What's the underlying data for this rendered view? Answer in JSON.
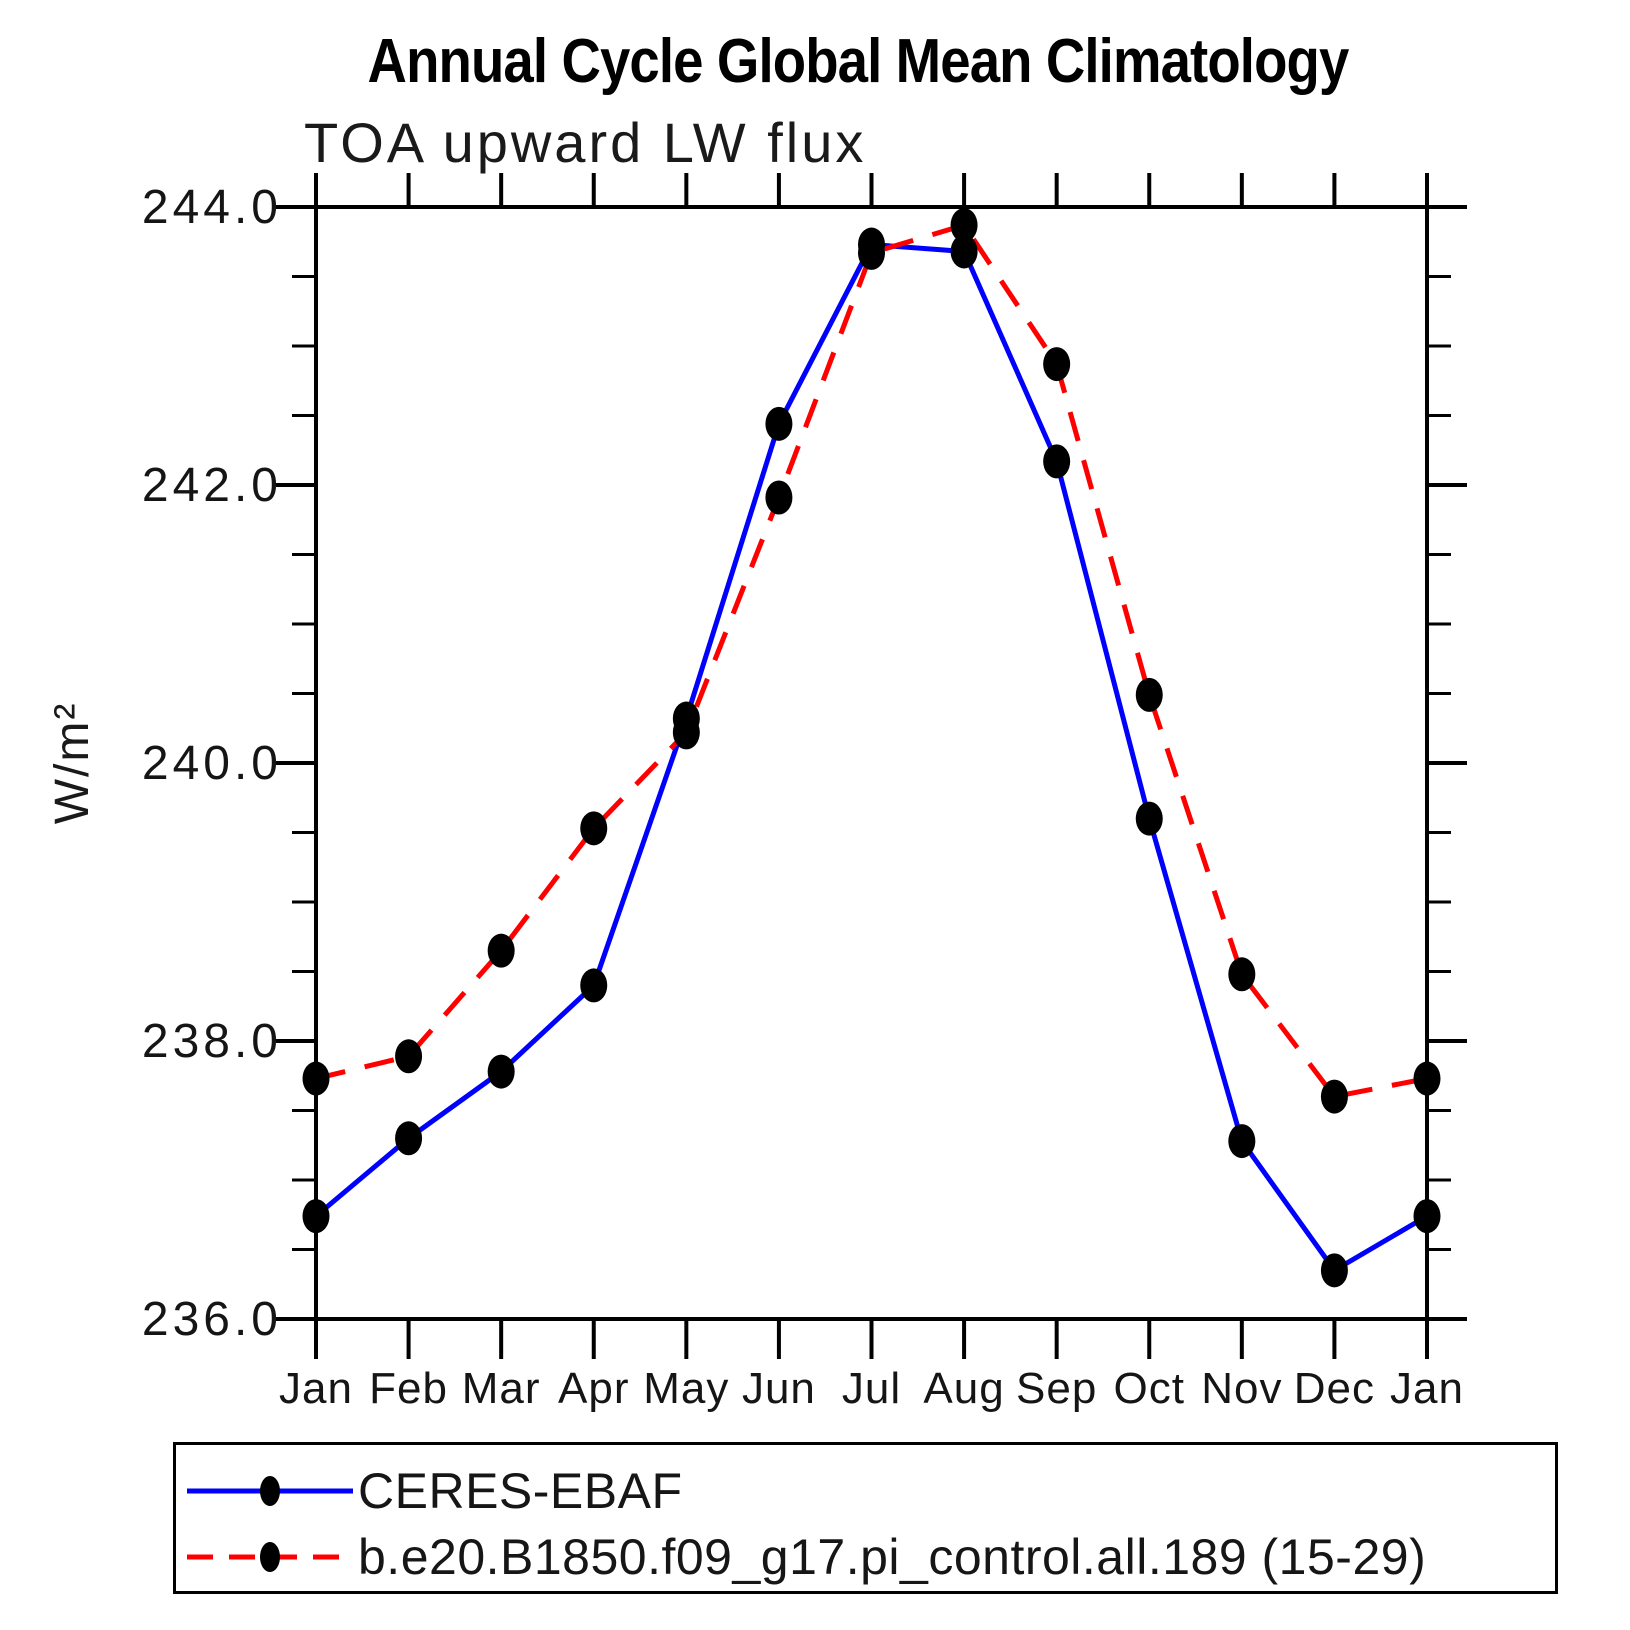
{
  "chart_data": {
    "type": "line",
    "title": "Annual Cycle Global Mean Climatology",
    "subtitle": "TOA upward LW flux",
    "ylabel": "W/m²",
    "categories": [
      "Jan",
      "Feb",
      "Mar",
      "Apr",
      "May",
      "Jun",
      "Jul",
      "Aug",
      "Sep",
      "Oct",
      "Nov",
      "Dec",
      "Jan"
    ],
    "series": [
      {
        "name": "CERES-EBAF",
        "color": "#0000ff",
        "line_style": "solid",
        "marker_color": "#000000",
        "values": [
          236.74,
          237.3,
          237.78,
          238.4,
          240.32,
          242.44,
          243.73,
          243.68,
          242.17,
          239.6,
          237.28,
          236.35,
          236.74
        ]
      },
      {
        "name": "b.e20.B1850.f09_g17.pi_control.all.189 (15-29)",
        "color": "#ff0000",
        "line_style": "dashed",
        "marker_color": "#000000",
        "values": [
          237.73,
          237.89,
          238.65,
          239.53,
          240.22,
          241.91,
          243.67,
          243.87,
          242.87,
          240.49,
          238.48,
          237.6,
          237.73
        ]
      }
    ],
    "ylim": [
      236.0,
      244.0
    ],
    "ytick_major": [
      236.0,
      238.0,
      240.0,
      242.0,
      244.0
    ],
    "ytick_labels": [
      "236.0",
      "238.0",
      "240.0",
      "242.0",
      "244.0"
    ],
    "ytick_minor_step": 0.5,
    "grid": false,
    "legend_position": "bottom"
  }
}
